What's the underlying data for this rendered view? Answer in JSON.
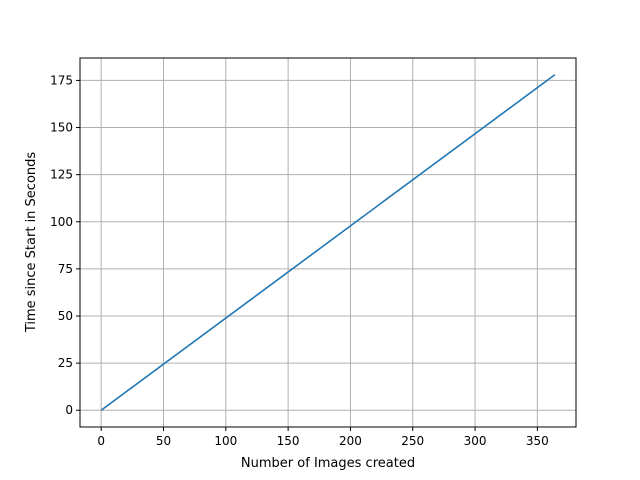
{
  "chart_data": {
    "type": "line",
    "title": "",
    "xlabel": "Number of Images created",
    "ylabel": "Time since Start in Seconds",
    "xlim": [
      -17,
      381
    ],
    "ylim": [
      -8.9,
      186.9
    ],
    "x_ticks": [
      0,
      50,
      100,
      150,
      200,
      250,
      300,
      350
    ],
    "y_ticks": [
      0,
      25,
      50,
      75,
      100,
      125,
      150,
      175
    ],
    "grid": true,
    "legend": "none",
    "series": [
      {
        "color": "#1f77b4",
        "x": [
          0,
          364
        ],
        "y": [
          0,
          178
        ]
      }
    ]
  }
}
